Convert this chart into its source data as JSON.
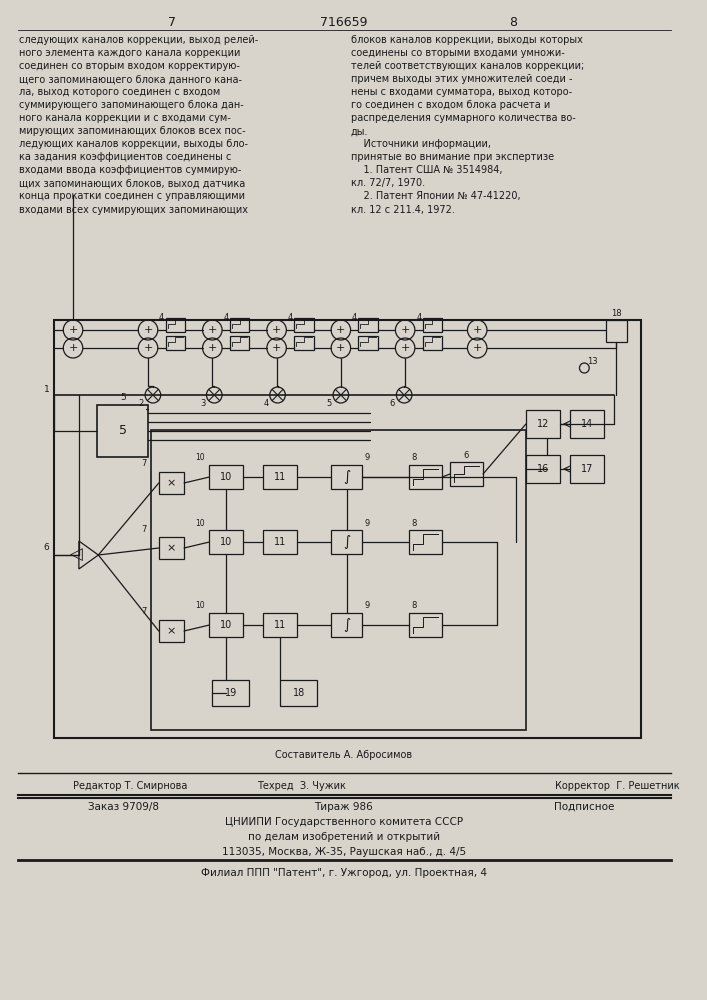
{
  "page_number_left": "7",
  "page_number_center": "716659",
  "page_number_right": "8",
  "text_left": "следующих каналов коррекции, выход релей-\nного элемента каждого канала коррекции\nсоединен со вторым входом корректирую-\nщего запоминающего блока данного кана-\nла, выход которого соединен с входом\nсуммирующего запоминающего блока дан-\nного канала коррекции и с входами сум-\nмирующих запоминающих блоков всех пос-\nледующих каналов коррекции, выходы бло-\nка задания коэффициентов соединены с\nвходами ввода коэффициентов суммирую-\nщих запоминающих блоков, выход датчика\nконца прокатки соединен с управляющими\nвходами всех суммирующих запоминающих",
  "text_right": "блоков каналов коррекции, выходы которых\nсоединены со вторыми входами умножи-\nтелей соответствующих каналов коррекции;\nпричем выходы этих умножителей соеди -\nнены с входами сумматора, выход которо-\nго соединен с входом блока расчета и\nраспределения суммарного количества во-\nды.\n    Источники информации,\nпринятые во внимание при экспертизе\n    1. Патент США № 3514984,\nкл. 72/7, 1970.\n    2. Патент Японии № 47-41220,\nкл. 12 с 211.4, 1972.",
  "compose_line": "Составитель А. Абросимов",
  "editor_line_label": "Редактор Т. Смирнова",
  "techred_label": "Техред  З. Чужик",
  "corrector_label": "Корректор  Г. Решетник",
  "order_label": "Заказ 9709/8",
  "tirazh_label": "Тираж 986",
  "podpisnoe_label": "Подписное",
  "institute": "ЦНИИПИ Государственного комитета СССР",
  "institute2": "по делам изобретений и открытий",
  "address": "113035, Москва, Ж-35, Раушская наб., д. 4/5",
  "branch": "Филиал ППП \"Патент\", г. Ужгород, ул. Проектная, 4",
  "bg_color": "#d8d4cc",
  "text_color": "#1a1a1a",
  "line_color": "#1a1a1a"
}
